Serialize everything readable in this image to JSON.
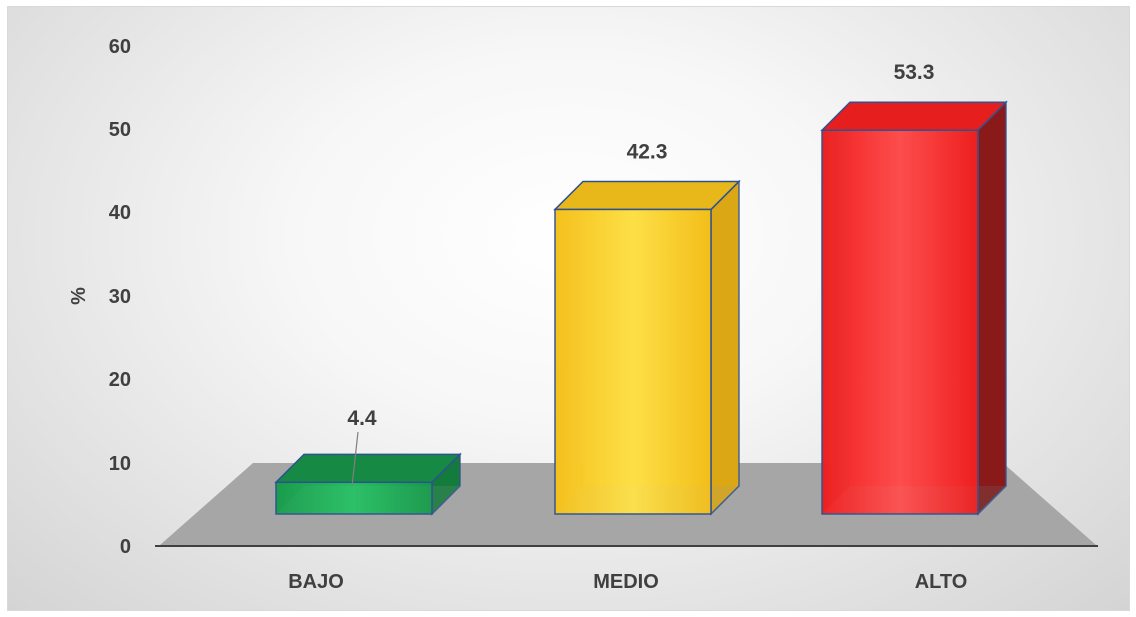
{
  "chart_data": {
    "type": "bar",
    "categories": [
      "BAJO",
      "MEDIO",
      "ALTO"
    ],
    "values": [
      4.4,
      42.3,
      53.3
    ],
    "data_labels": [
      "4.4",
      "42.3",
      "53.3"
    ],
    "ylabel": "%",
    "xlabel": "",
    "title": "",
    "ylim": [
      0,
      60
    ],
    "yticks": [
      "0",
      "10",
      "20",
      "30",
      "40",
      "50",
      "60"
    ],
    "grid": false,
    "legend": "none",
    "style": "3d-column",
    "colors": [
      "#1fb25a",
      "#ffd52e",
      "#ff2a2a"
    ],
    "floor_color": "#a6a6a6"
  }
}
